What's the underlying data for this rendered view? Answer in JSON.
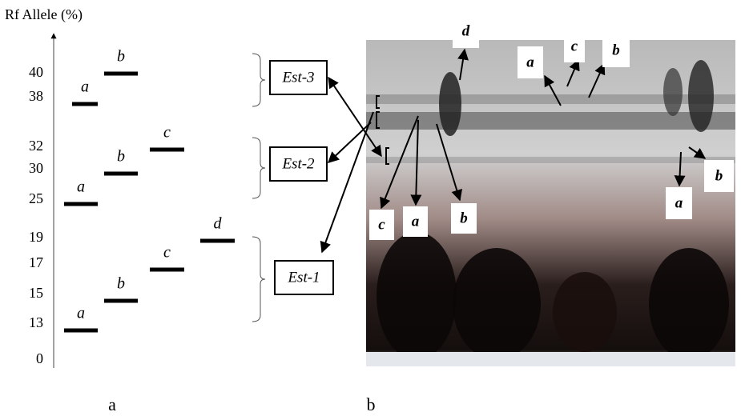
{
  "axis_title": "Rf Allele (%)",
  "ticks": [
    0,
    13,
    15,
    17,
    19,
    25,
    30,
    32,
    38,
    40
  ],
  "loci": [
    {
      "name": "Est-3",
      "alleles": [
        {
          "label": "a",
          "rf": 38
        },
        {
          "label": "b",
          "rf": 40
        }
      ]
    },
    {
      "name": "Est-2",
      "alleles": [
        {
          "label": "a",
          "rf": 25
        },
        {
          "label": "b",
          "rf": 30
        },
        {
          "label": "c",
          "rf": 32
        }
      ]
    },
    {
      "name": "Est-1",
      "alleles": [
        {
          "label": "a",
          "rf": 13
        },
        {
          "label": "b",
          "rf": 15
        },
        {
          "label": "c",
          "rf": 17
        },
        {
          "label": "d",
          "rf": 19
        }
      ]
    }
  ],
  "gel_labels": [
    "d",
    "a",
    "c",
    "b",
    "c",
    "a",
    "b",
    "b",
    "a"
  ],
  "panel_labels": [
    "a",
    "b"
  ]
}
